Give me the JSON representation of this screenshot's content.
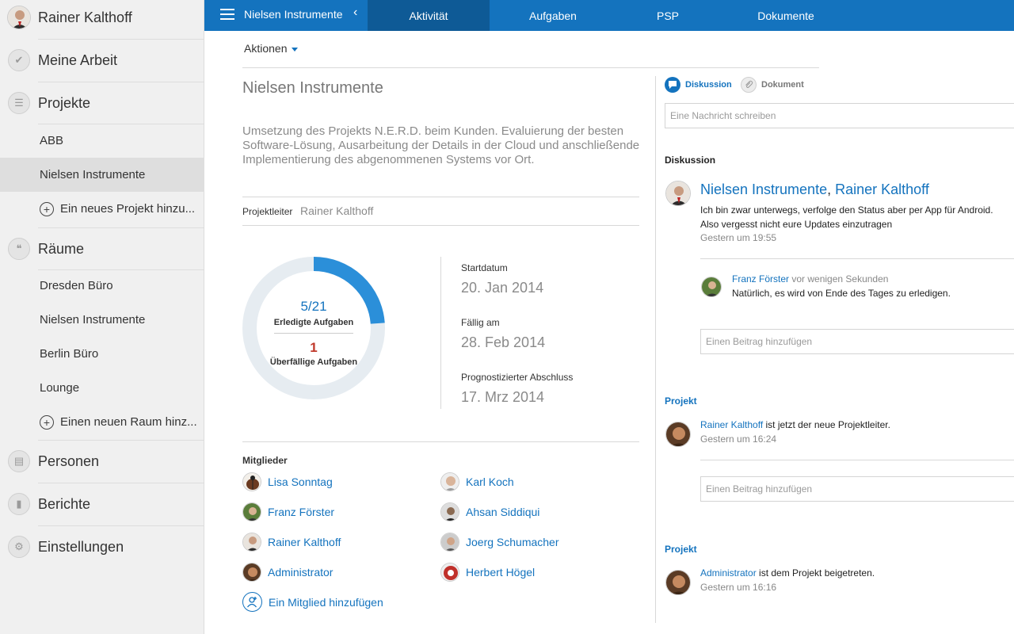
{
  "user": {
    "name": "Rainer Kalthoff"
  },
  "sidebar": {
    "meine_arbeit": "Meine Arbeit",
    "projekte": "Projekte",
    "projects": [
      "ABB",
      "Nielsen Instrumente"
    ],
    "add_project": "Ein neues Projekt hinzu...",
    "raeume": "Räume",
    "rooms": [
      "Dresden Büro",
      "Nielsen Instrumente",
      "Berlin Büro",
      "Lounge"
    ],
    "add_room": "Einen neuen Raum hinz...",
    "personen": "Personen",
    "berichte": "Berichte",
    "einstellungen": "Einstellungen"
  },
  "topbar": {
    "project_title": "Nielsen Instrumente",
    "collapse_glyph": "‹",
    "tabs": [
      "Aktivität",
      "Aufgaben",
      "PSP",
      "Dokumente"
    ],
    "active_tab": "Aktivität"
  },
  "main": {
    "actions_label": "Aktionen",
    "project_heading": "Nielsen Instrumente",
    "description": "Umsetzung des Projekts N.E.R.D. beim Kunden. Evaluierung der besten Software-Lösung, Ausarbeitung der Details in der Cloud und anschließende Implementierung des abgenommenen Systems vor Ort.",
    "projektleiter_label": "Projektleiter",
    "projektleiter_value": "Rainer Kalthoff",
    "donut": {
      "done_value": "5/21",
      "done_label": "Erledigte Aufgaben",
      "overdue_value": "1",
      "overdue_label": "Überfällige Aufgaben",
      "completed": 5,
      "total": 21,
      "colors": {
        "progress": "#2b8fd9",
        "track": "#e6ecf1"
      }
    },
    "dates": {
      "start_label": "Startdatum",
      "start_value": "20. Jan 2014",
      "due_label": "Fällig am",
      "due_value": "28. Feb 2014",
      "forecast_label": "Prognostizierter Abschluss",
      "forecast_value": "17. Mrz 2014"
    },
    "members_title": "Mitglieder",
    "members": [
      {
        "name": "Lisa Sonntag",
        "icon": "ladybug-avatar"
      },
      {
        "name": "Karl Koch",
        "icon": "person-avatar"
      },
      {
        "name": "Franz Förster",
        "icon": "person-avatar"
      },
      {
        "name": "Ahsan Siddiqui",
        "icon": "person-avatar"
      },
      {
        "name": "Rainer Kalthoff",
        "icon": "person-avatar"
      },
      {
        "name": "Joerg Schumacher",
        "icon": "person-avatar"
      },
      {
        "name": "Administrator",
        "icon": "person-avatar"
      },
      {
        "name": "Herbert Högel",
        "icon": "person-avatar"
      }
    ],
    "add_member": "Ein Mitglied hinzufügen"
  },
  "right": {
    "tabs": {
      "diskussion": "Diskussion",
      "dokument": "Dokument"
    },
    "message_placeholder": "Eine Nachricht schreiben",
    "discussion_title": "Diskussion",
    "post": {
      "title_part1": "Nielsen Instrumente",
      "title_sep": ", ",
      "title_part2": "Rainer Kalthoff",
      "line1": "Ich bin zwar unterwegs, verfolge den Status aber per App für Android.",
      "line2": "Also vergesst nicht eure Updates einzutragen",
      "time": "Gestern um 19:55"
    },
    "reply": {
      "author": "Franz Förster",
      "time_suffix": " vor wenigen Sekunden",
      "text": "Natürlich, es wird von Ende des Tages zu erledigen."
    },
    "reply_placeholder": "Einen Beitrag hinzufügen",
    "project_sections": [
      {
        "title": "Projekt",
        "actor": "Rainer Kalthoff",
        "text": " ist jetzt der neue Projektleiter.",
        "time": "Gestern um 16:24"
      },
      {
        "title": "Projekt",
        "actor": "Administrator",
        "text": " ist dem Projekt beigetreten.",
        "time": "Gestern um 16:16"
      }
    ]
  },
  "colors": {
    "accent": "#1473be",
    "accent_dark": "#0e5a96",
    "sidebar_bg": "#f0f0f0",
    "overdue": "#c0392b"
  }
}
